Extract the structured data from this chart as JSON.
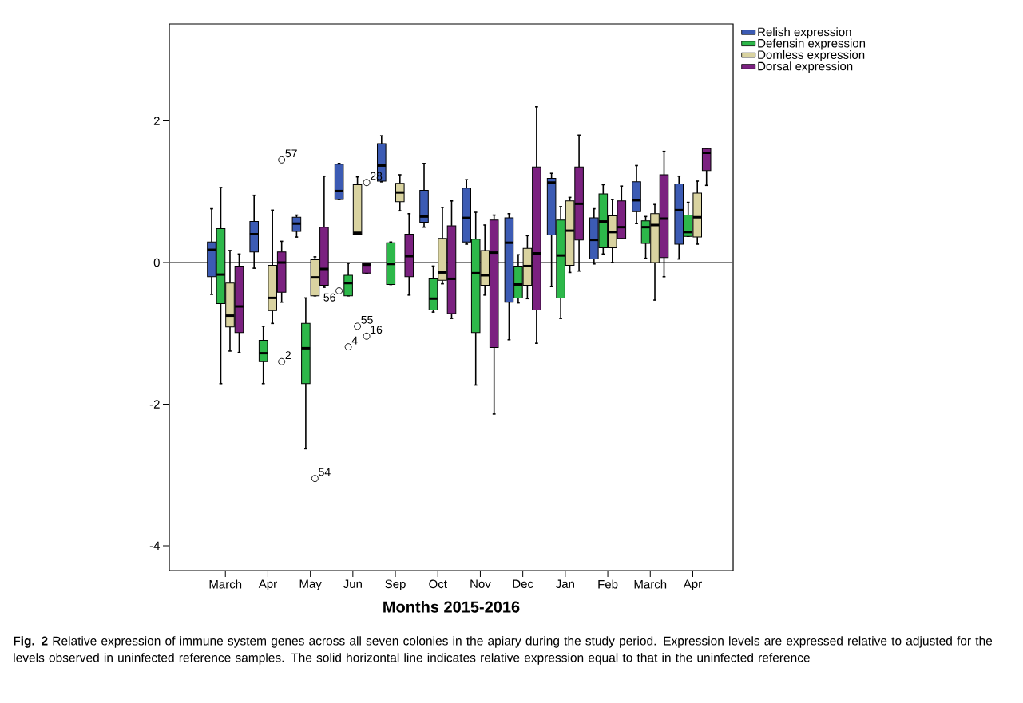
{
  "chart_data": {
    "type": "box",
    "xlabel": "Months 2015-2016",
    "categories": [
      "March",
      "Apr",
      "May",
      "Jun",
      "Sep",
      "Oct",
      "Nov",
      "Dec",
      "Jan",
      "Feb",
      "March",
      "Apr"
    ],
    "ylim": [
      -4.35,
      3.37
    ],
    "yticks": [
      -4,
      -2,
      0,
      2
    ],
    "grid": false,
    "legend": "top right",
    "ref_lines": [
      {
        "axis": "y",
        "value": 0
      }
    ],
    "series": [
      {
        "name": "Relish expression",
        "color": "#3c5bb4",
        "boxes": [
          {
            "low": -0.45,
            "q1": -0.2,
            "median": 0.18,
            "q3": 0.29,
            "high": 0.76
          },
          {
            "low": -0.08,
            "q1": 0.15,
            "median": 0.4,
            "q3": 0.58,
            "high": 0.95
          },
          {
            "low": 0.36,
            "q1": 0.44,
            "median": 0.55,
            "q3": 0.64,
            "high": 0.67
          },
          {
            "low": 0.89,
            "q1": 0.89,
            "median": 1.01,
            "q3": 1.39,
            "high": 1.4,
            "outliers": [
              -0.4
            ]
          },
          {
            "low": 1.14,
            "q1": 1.15,
            "median": 1.37,
            "q3": 1.68,
            "high": 1.79
          },
          {
            "low": 0.5,
            "q1": 0.57,
            "median": 0.65,
            "q3": 1.02,
            "high": 1.4
          },
          {
            "low": 0.26,
            "q1": 0.29,
            "median": 0.63,
            "q3": 1.05,
            "high": 1.17
          },
          {
            "low": -1.09,
            "q1": -0.56,
            "median": 0.28,
            "q3": 0.63,
            "high": 0.69
          },
          {
            "low": -0.34,
            "q1": 0.39,
            "median": 1.13,
            "q3": 1.19,
            "high": 1.26
          },
          {
            "low": -0.02,
            "q1": 0.05,
            "median": 0.32,
            "q3": 0.63,
            "high": 0.76
          },
          {
            "low": 0.55,
            "q1": 0.72,
            "median": 0.88,
            "q3": 1.14,
            "high": 1.37
          },
          {
            "low": 0.05,
            "q1": 0.26,
            "median": 0.74,
            "q3": 1.11,
            "high": 1.22
          }
        ]
      },
      {
        "name": "Defensin expression",
        "color": "#2db84a",
        "boxes": [
          {
            "low": -1.71,
            "q1": -0.58,
            "median": -0.17,
            "q3": 0.48,
            "high": 1.06
          },
          {
            "low": -1.71,
            "q1": -1.4,
            "median": -1.28,
            "q3": -1.1,
            "high": -0.9
          },
          {
            "low": -2.63,
            "q1": -1.71,
            "median": -1.21,
            "q3": -0.86,
            "high": -0.5
          },
          {
            "low": -0.47,
            "q1": -0.47,
            "median": -0.29,
            "q3": -0.18,
            "high": -0.01,
            "outliers": [
              -1.19
            ]
          },
          {
            "low": -0.31,
            "q1": -0.31,
            "median": -0.02,
            "q3": 0.28,
            "high": 0.29
          },
          {
            "low": -0.7,
            "q1": -0.67,
            "median": -0.51,
            "q3": -0.23,
            "high": -0.05
          },
          {
            "low": -1.73,
            "q1": -0.99,
            "median": -0.15,
            "q3": 0.33,
            "high": 0.71
          },
          {
            "low": -0.57,
            "q1": -0.5,
            "median": -0.31,
            "q3": -0.05,
            "high": 0.11
          },
          {
            "low": -0.79,
            "q1": -0.5,
            "median": 0.1,
            "q3": 0.6,
            "high": 0.79
          },
          {
            "low": 0.12,
            "q1": 0.21,
            "median": 0.58,
            "q3": 0.97,
            "high": 1.1
          },
          {
            "low": 0.06,
            "q1": 0.27,
            "median": 0.5,
            "q3": 0.59,
            "high": 0.65
          },
          {
            "low": 0.37,
            "q1": 0.37,
            "median": 0.43,
            "q3": 0.67,
            "high": 0.85
          }
        ]
      },
      {
        "name": "Domless expression",
        "color": "#d9d3a0",
        "boxes": [
          {
            "low": -1.25,
            "q1": -0.91,
            "median": -0.75,
            "q3": -0.29,
            "high": 0.17
          },
          {
            "low": -0.86,
            "q1": -0.68,
            "median": -0.5,
            "q3": -0.04,
            "high": 0.74
          },
          {
            "low": -0.47,
            "q1": -0.47,
            "median": -0.21,
            "q3": 0.04,
            "high": 0.08,
            "outliers": [
              -3.05
            ]
          },
          {
            "low": 0.4,
            "q1": 0.4,
            "median": 0.42,
            "q3": 1.1,
            "high": 1.21,
            "outliers": [
              -0.9
            ]
          },
          {
            "low": 0.73,
            "q1": 0.86,
            "median": 0.99,
            "q3": 1.12,
            "high": 1.24
          },
          {
            "low": -0.3,
            "q1": -0.25,
            "median": -0.14,
            "q3": 0.34,
            "high": 0.78
          },
          {
            "low": -0.46,
            "q1": -0.32,
            "median": -0.18,
            "q3": 0.17,
            "high": 0.53
          },
          {
            "low": -0.51,
            "q1": -0.32,
            "median": -0.05,
            "q3": 0.2,
            "high": 0.38
          },
          {
            "low": -0.14,
            "q1": -0.04,
            "median": 0.45,
            "q3": 0.87,
            "high": 0.92
          },
          {
            "low": 0.0,
            "q1": 0.21,
            "median": 0.43,
            "q3": 0.66,
            "high": 0.89
          },
          {
            "low": -0.53,
            "q1": 0.0,
            "median": 0.53,
            "q3": 0.69,
            "high": 0.82
          },
          {
            "low": 0.26,
            "q1": 0.36,
            "median": 0.64,
            "q3": 0.98,
            "high": 1.15
          }
        ]
      },
      {
        "name": "Dorsal expression",
        "color": "#7b2180",
        "boxes": [
          {
            "low": -1.27,
            "q1": -0.99,
            "median": -0.62,
            "q3": -0.05,
            "high": 0.12
          },
          {
            "low": -0.56,
            "q1": -0.42,
            "median": 0.0,
            "q3": 0.15,
            "high": 0.3,
            "outliers": [
              1.45,
              -1.4
            ]
          },
          {
            "low": -0.35,
            "q1": -0.32,
            "median": -0.09,
            "q3": 0.5,
            "high": 1.22
          },
          {
            "low": -0.15,
            "q1": -0.15,
            "median": -0.03,
            "q3": -0.01,
            "high": -0.01,
            "outliers": [
              -1.04,
              1.13
            ]
          },
          {
            "low": -0.46,
            "q1": -0.2,
            "median": 0.09,
            "q3": 0.4,
            "high": 0.69
          },
          {
            "low": -0.79,
            "q1": -0.72,
            "median": -0.23,
            "q3": 0.52,
            "high": 0.87
          },
          {
            "low": -2.14,
            "q1": -1.2,
            "median": 0.14,
            "q3": 0.6,
            "high": 0.67
          },
          {
            "low": -1.14,
            "q1": -0.67,
            "median": 0.13,
            "q3": 1.35,
            "high": 2.2
          },
          {
            "low": -0.12,
            "q1": 0.32,
            "median": 0.83,
            "q3": 1.35,
            "high": 1.8
          },
          {
            "low": 0.34,
            "q1": 0.34,
            "median": 0.5,
            "q3": 0.87,
            "high": 1.08
          },
          {
            "low": -0.2,
            "q1": 0.07,
            "median": 0.62,
            "q3": 1.24,
            "high": 1.57
          },
          {
            "low": 1.09,
            "q1": 1.3,
            "median": 1.55,
            "q3": 1.61,
            "high": 1.61
          }
        ]
      }
    ],
    "annotations": [
      "56",
      "4",
      "54",
      "55",
      "57",
      "2",
      "16",
      "28",
      "**Fig. 2** Relative expression of immune system genes across all seven colonies in the apiary during the study period. Expression levels are expressed relative to adjusted for the levels observed in uninfected reference samples. The solid horizontal line indicates relative expression equal to that in the uninfected reference"
    ]
  }
}
